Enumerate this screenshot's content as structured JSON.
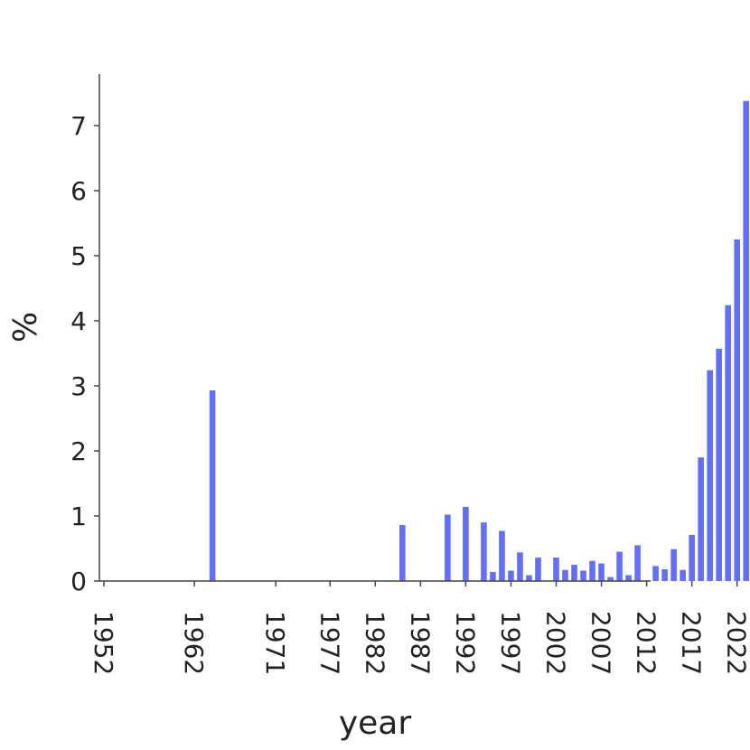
{
  "chart_data": {
    "type": "bar",
    "title": "",
    "xlabel": "year",
    "ylabel": "%",
    "x_ticks": [
      "1952",
      "1962",
      "1971",
      "1977",
      "1982",
      "1987",
      "1992",
      "1997",
      "2002",
      "2007",
      "2012",
      "2017",
      "2022"
    ],
    "y_ticks": [
      "0",
      "1",
      "2",
      "3",
      "4",
      "5",
      "6",
      "7"
    ],
    "ylim": [
      0,
      7.8
    ],
    "grid": false,
    "legend": "none",
    "colors": {
      "bar": "#636efa",
      "axis": "#444444",
      "text": "#222222"
    },
    "categories": [
      "1952",
      "1962",
      "1964",
      "1971",
      "1977",
      "1982",
      "1985",
      "1990",
      "1992",
      "1994",
      "1995",
      "1996",
      "1997",
      "1998",
      "1999",
      "2000",
      "2002",
      "2003",
      "2004",
      "2005",
      "2006",
      "2007",
      "2008",
      "2009",
      "2010",
      "2011",
      "2013",
      "2014",
      "2015",
      "2016",
      "2017",
      "2018",
      "2019",
      "2020",
      "2021",
      "2022",
      "2023"
    ],
    "values": [
      0,
      0,
      2.93,
      0,
      0,
      0,
      0.86,
      1.02,
      1.14,
      0.9,
      0.14,
      0.77,
      0.16,
      0.44,
      0.09,
      0.36,
      0.36,
      0.17,
      0.25,
      0.16,
      0.31,
      0.27,
      0.06,
      0.45,
      0.09,
      0.55,
      0.23,
      0.18,
      0.49,
      0.17,
      0.71,
      1.9,
      3.24,
      3.57,
      4.24,
      5.25,
      7.38
    ]
  }
}
